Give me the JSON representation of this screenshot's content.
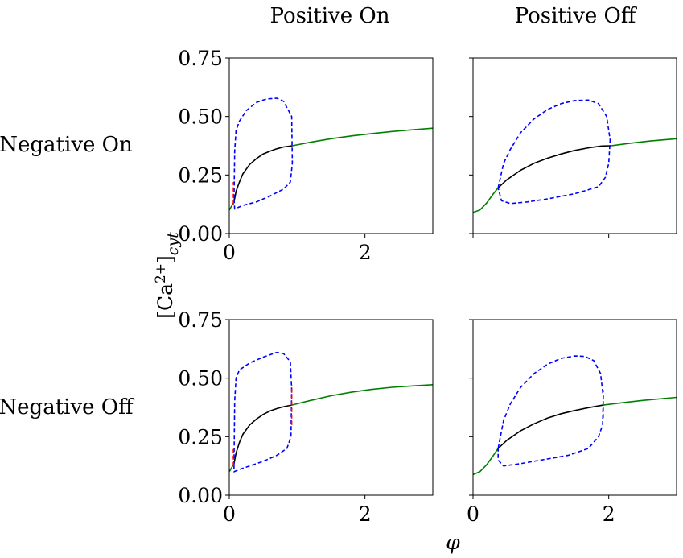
{
  "figure": {
    "column_titles": [
      "Positive On",
      "Positive Off"
    ],
    "row_titles": [
      "Negative On",
      "Negative Off"
    ],
    "xlabel": "φ",
    "ylabel_main": "[Ca",
    "ylabel_sup": "2+",
    "ylabel_close": "]",
    "ylabel_sub": "cyt"
  },
  "chart_data": [
    {
      "type": "line",
      "panel": "Negative On / Positive On",
      "xlim": [
        0,
        3
      ],
      "ylim": [
        0,
        0.75
      ],
      "xticks": [
        0,
        2
      ],
      "xtick_labels": [
        "0",
        "2"
      ],
      "yticks": [
        0,
        0.25,
        0.5,
        0.75
      ],
      "ytick_labels": [
        "0.00",
        "0.25",
        "0.50",
        "0.75"
      ],
      "series": [
        {
          "color": "#008000",
          "style": "solid",
          "points": [
            [
              0.0,
              0.1
            ],
            [
              0.03,
              0.115
            ],
            [
              0.06,
              0.13
            ],
            [
              0.07,
              0.135
            ]
          ]
        },
        {
          "color": "#008000",
          "style": "solid",
          "points": [
            [
              0.93,
              0.375
            ],
            [
              1.2,
              0.39
            ],
            [
              1.5,
              0.405
            ],
            [
              1.8,
              0.417
            ],
            [
              2.1,
              0.427
            ],
            [
              2.4,
              0.436
            ],
            [
              2.7,
              0.443
            ],
            [
              3.0,
              0.45
            ]
          ]
        },
        {
          "color": "#000000",
          "style": "solid",
          "points": [
            [
              0.07,
              0.135
            ],
            [
              0.1,
              0.18
            ],
            [
              0.15,
              0.22
            ],
            [
              0.2,
              0.255
            ],
            [
              0.3,
              0.295
            ],
            [
              0.4,
              0.32
            ],
            [
              0.5,
              0.34
            ],
            [
              0.6,
              0.352
            ],
            [
              0.7,
              0.362
            ],
            [
              0.8,
              0.37
            ],
            [
              0.93,
              0.375
            ]
          ]
        },
        {
          "color": "#0000ff",
          "style": "dashed",
          "points": [
            [
              0.07,
              0.15
            ],
            [
              0.08,
              0.35
            ],
            [
              0.1,
              0.44
            ],
            [
              0.15,
              0.48
            ],
            [
              0.25,
              0.525
            ],
            [
              0.4,
              0.56
            ],
            [
              0.55,
              0.575
            ],
            [
              0.7,
              0.578
            ],
            [
              0.8,
              0.565
            ],
            [
              0.92,
              0.5
            ],
            [
              0.93,
              0.3
            ],
            [
              0.9,
              0.22
            ],
            [
              0.8,
              0.19
            ],
            [
              0.6,
              0.16
            ],
            [
              0.4,
              0.135
            ],
            [
              0.2,
              0.12
            ],
            [
              0.08,
              0.105
            ],
            [
              0.07,
              0.15
            ]
          ]
        },
        {
          "color": "#ff0000",
          "style": "dashed",
          "points": [
            [
              0.06,
              0.125
            ],
            [
              0.06,
              0.22
            ]
          ]
        }
      ]
    },
    {
      "type": "line",
      "panel": "Negative On / Positive Off",
      "xlim": [
        0,
        3
      ],
      "ylim": [
        0,
        0.75
      ],
      "xticks": [
        0,
        2
      ],
      "xtick_labels": [
        "",
        ""
      ],
      "yticks": [
        0,
        0.25,
        0.5,
        0.75
      ],
      "ytick_labels": [
        "",
        "",
        "",
        ""
      ],
      "series": [
        {
          "color": "#008000",
          "style": "solid",
          "points": [
            [
              0.0,
              0.09
            ],
            [
              0.1,
              0.1
            ],
            [
              0.2,
              0.13
            ],
            [
              0.3,
              0.17
            ],
            [
              0.37,
              0.195
            ]
          ]
        },
        {
          "color": "#008000",
          "style": "solid",
          "points": [
            [
              2.03,
              0.375
            ],
            [
              2.3,
              0.385
            ],
            [
              2.6,
              0.395
            ],
            [
              3.0,
              0.405
            ]
          ]
        },
        {
          "color": "#000000",
          "style": "solid",
          "points": [
            [
              0.37,
              0.195
            ],
            [
              0.5,
              0.23
            ],
            [
              0.7,
              0.27
            ],
            [
              0.9,
              0.3
            ],
            [
              1.1,
              0.322
            ],
            [
              1.3,
              0.34
            ],
            [
              1.5,
              0.355
            ],
            [
              1.7,
              0.366
            ],
            [
              1.9,
              0.374
            ],
            [
              2.03,
              0.375
            ]
          ]
        },
        {
          "color": "#0000ff",
          "style": "dashed",
          "points": [
            [
              0.37,
              0.195
            ],
            [
              0.45,
              0.3
            ],
            [
              0.55,
              0.36
            ],
            [
              0.7,
              0.43
            ],
            [
              0.9,
              0.49
            ],
            [
              1.1,
              0.53
            ],
            [
              1.3,
              0.555
            ],
            [
              1.5,
              0.568
            ],
            [
              1.7,
              0.57
            ],
            [
              1.85,
              0.555
            ],
            [
              1.97,
              0.5
            ],
            [
              2.02,
              0.4
            ],
            [
              2.0,
              0.3
            ],
            [
              1.95,
              0.24
            ],
            [
              1.85,
              0.2
            ],
            [
              1.5,
              0.17
            ],
            [
              1.1,
              0.148
            ],
            [
              0.8,
              0.135
            ],
            [
              0.55,
              0.128
            ],
            [
              0.42,
              0.14
            ],
            [
              0.37,
              0.195
            ]
          ]
        }
      ]
    },
    {
      "type": "line",
      "panel": "Negative Off / Positive On",
      "xlim": [
        0,
        3
      ],
      "ylim": [
        0,
        0.75
      ],
      "xticks": [
        0,
        2
      ],
      "xtick_labels": [
        "0",
        "2"
      ],
      "yticks": [
        0,
        0.25,
        0.5,
        0.75
      ],
      "ytick_labels": [
        "0.00",
        "0.25",
        "0.50",
        "0.75"
      ],
      "series": [
        {
          "color": "#008000",
          "style": "solid",
          "points": [
            [
              0.0,
              0.1
            ],
            [
              0.03,
              0.115
            ],
            [
              0.06,
              0.13
            ],
            [
              0.07,
              0.135
            ]
          ]
        },
        {
          "color": "#008000",
          "style": "solid",
          "points": [
            [
              0.92,
              0.385
            ],
            [
              1.2,
              0.405
            ],
            [
              1.5,
              0.425
            ],
            [
              1.8,
              0.44
            ],
            [
              2.1,
              0.452
            ],
            [
              2.4,
              0.461
            ],
            [
              2.7,
              0.467
            ],
            [
              3.0,
              0.472
            ]
          ]
        },
        {
          "color": "#000000",
          "style": "solid",
          "points": [
            [
              0.07,
              0.135
            ],
            [
              0.1,
              0.18
            ],
            [
              0.15,
              0.225
            ],
            [
              0.2,
              0.26
            ],
            [
              0.3,
              0.3
            ],
            [
              0.4,
              0.325
            ],
            [
              0.5,
              0.345
            ],
            [
              0.6,
              0.36
            ],
            [
              0.7,
              0.37
            ],
            [
              0.8,
              0.378
            ],
            [
              0.92,
              0.385
            ]
          ]
        },
        {
          "color": "#0000ff",
          "style": "dashed",
          "points": [
            [
              0.07,
              0.13
            ],
            [
              0.08,
              0.4
            ],
            [
              0.1,
              0.5
            ],
            [
              0.15,
              0.535
            ],
            [
              0.3,
              0.565
            ],
            [
              0.5,
              0.59
            ],
            [
              0.7,
              0.61
            ],
            [
              0.8,
              0.605
            ],
            [
              0.9,
              0.57
            ],
            [
              0.92,
              0.45
            ],
            [
              0.91,
              0.25
            ],
            [
              0.85,
              0.2
            ],
            [
              0.7,
              0.17
            ],
            [
              0.5,
              0.145
            ],
            [
              0.3,
              0.125
            ],
            [
              0.15,
              0.11
            ],
            [
              0.07,
              0.1
            ],
            [
              0.07,
              0.13
            ]
          ]
        },
        {
          "color": "#ff0000",
          "style": "dashed",
          "points": [
            [
              0.06,
              0.125
            ],
            [
              0.06,
              0.2
            ]
          ]
        },
        {
          "color": "#ff0000",
          "style": "dashed",
          "points": [
            [
              0.92,
              0.3
            ],
            [
              0.92,
              0.47
            ]
          ]
        }
      ]
    },
    {
      "type": "line",
      "panel": "Negative Off / Positive Off",
      "xlim": [
        0,
        3
      ],
      "ylim": [
        0,
        0.75
      ],
      "xticks": [
        0,
        2
      ],
      "xtick_labels": [
        "0",
        "2"
      ],
      "yticks": [
        0,
        0.25,
        0.5,
        0.75
      ],
      "ytick_labels": [
        "",
        "",
        "",
        ""
      ],
      "series": [
        {
          "color": "#008000",
          "style": "solid",
          "points": [
            [
              0.0,
              0.088
            ],
            [
              0.1,
              0.1
            ],
            [
              0.2,
              0.13
            ],
            [
              0.3,
              0.17
            ],
            [
              0.37,
              0.2
            ]
          ]
        },
        {
          "color": "#008000",
          "style": "solid",
          "points": [
            [
              1.92,
              0.385
            ],
            [
              2.2,
              0.395
            ],
            [
              2.5,
              0.405
            ],
            [
              2.8,
              0.413
            ],
            [
              3.0,
              0.418
            ]
          ]
        },
        {
          "color": "#000000",
          "style": "solid",
          "points": [
            [
              0.37,
              0.2
            ],
            [
              0.5,
              0.235
            ],
            [
              0.7,
              0.275
            ],
            [
              0.9,
              0.305
            ],
            [
              1.1,
              0.33
            ],
            [
              1.3,
              0.348
            ],
            [
              1.5,
              0.362
            ],
            [
              1.7,
              0.374
            ],
            [
              1.92,
              0.385
            ]
          ]
        },
        {
          "color": "#0000ff",
          "style": "dashed",
          "points": [
            [
              0.37,
              0.2
            ],
            [
              0.45,
              0.32
            ],
            [
              0.55,
              0.39
            ],
            [
              0.7,
              0.46
            ],
            [
              0.9,
              0.52
            ],
            [
              1.1,
              0.56
            ],
            [
              1.3,
              0.585
            ],
            [
              1.5,
              0.595
            ],
            [
              1.65,
              0.593
            ],
            [
              1.78,
              0.575
            ],
            [
              1.88,
              0.52
            ],
            [
              1.92,
              0.42
            ],
            [
              1.91,
              0.3
            ],
            [
              1.85,
              0.25
            ],
            [
              1.7,
              0.2
            ],
            [
              1.4,
              0.17
            ],
            [
              1.0,
              0.15
            ],
            [
              0.7,
              0.135
            ],
            [
              0.45,
              0.125
            ],
            [
              0.37,
              0.15
            ],
            [
              0.37,
              0.2
            ]
          ]
        },
        {
          "color": "#ff0000",
          "style": "dashed",
          "points": [
            [
              1.92,
              0.33
            ],
            [
              1.92,
              0.45
            ]
          ]
        }
      ]
    }
  ]
}
